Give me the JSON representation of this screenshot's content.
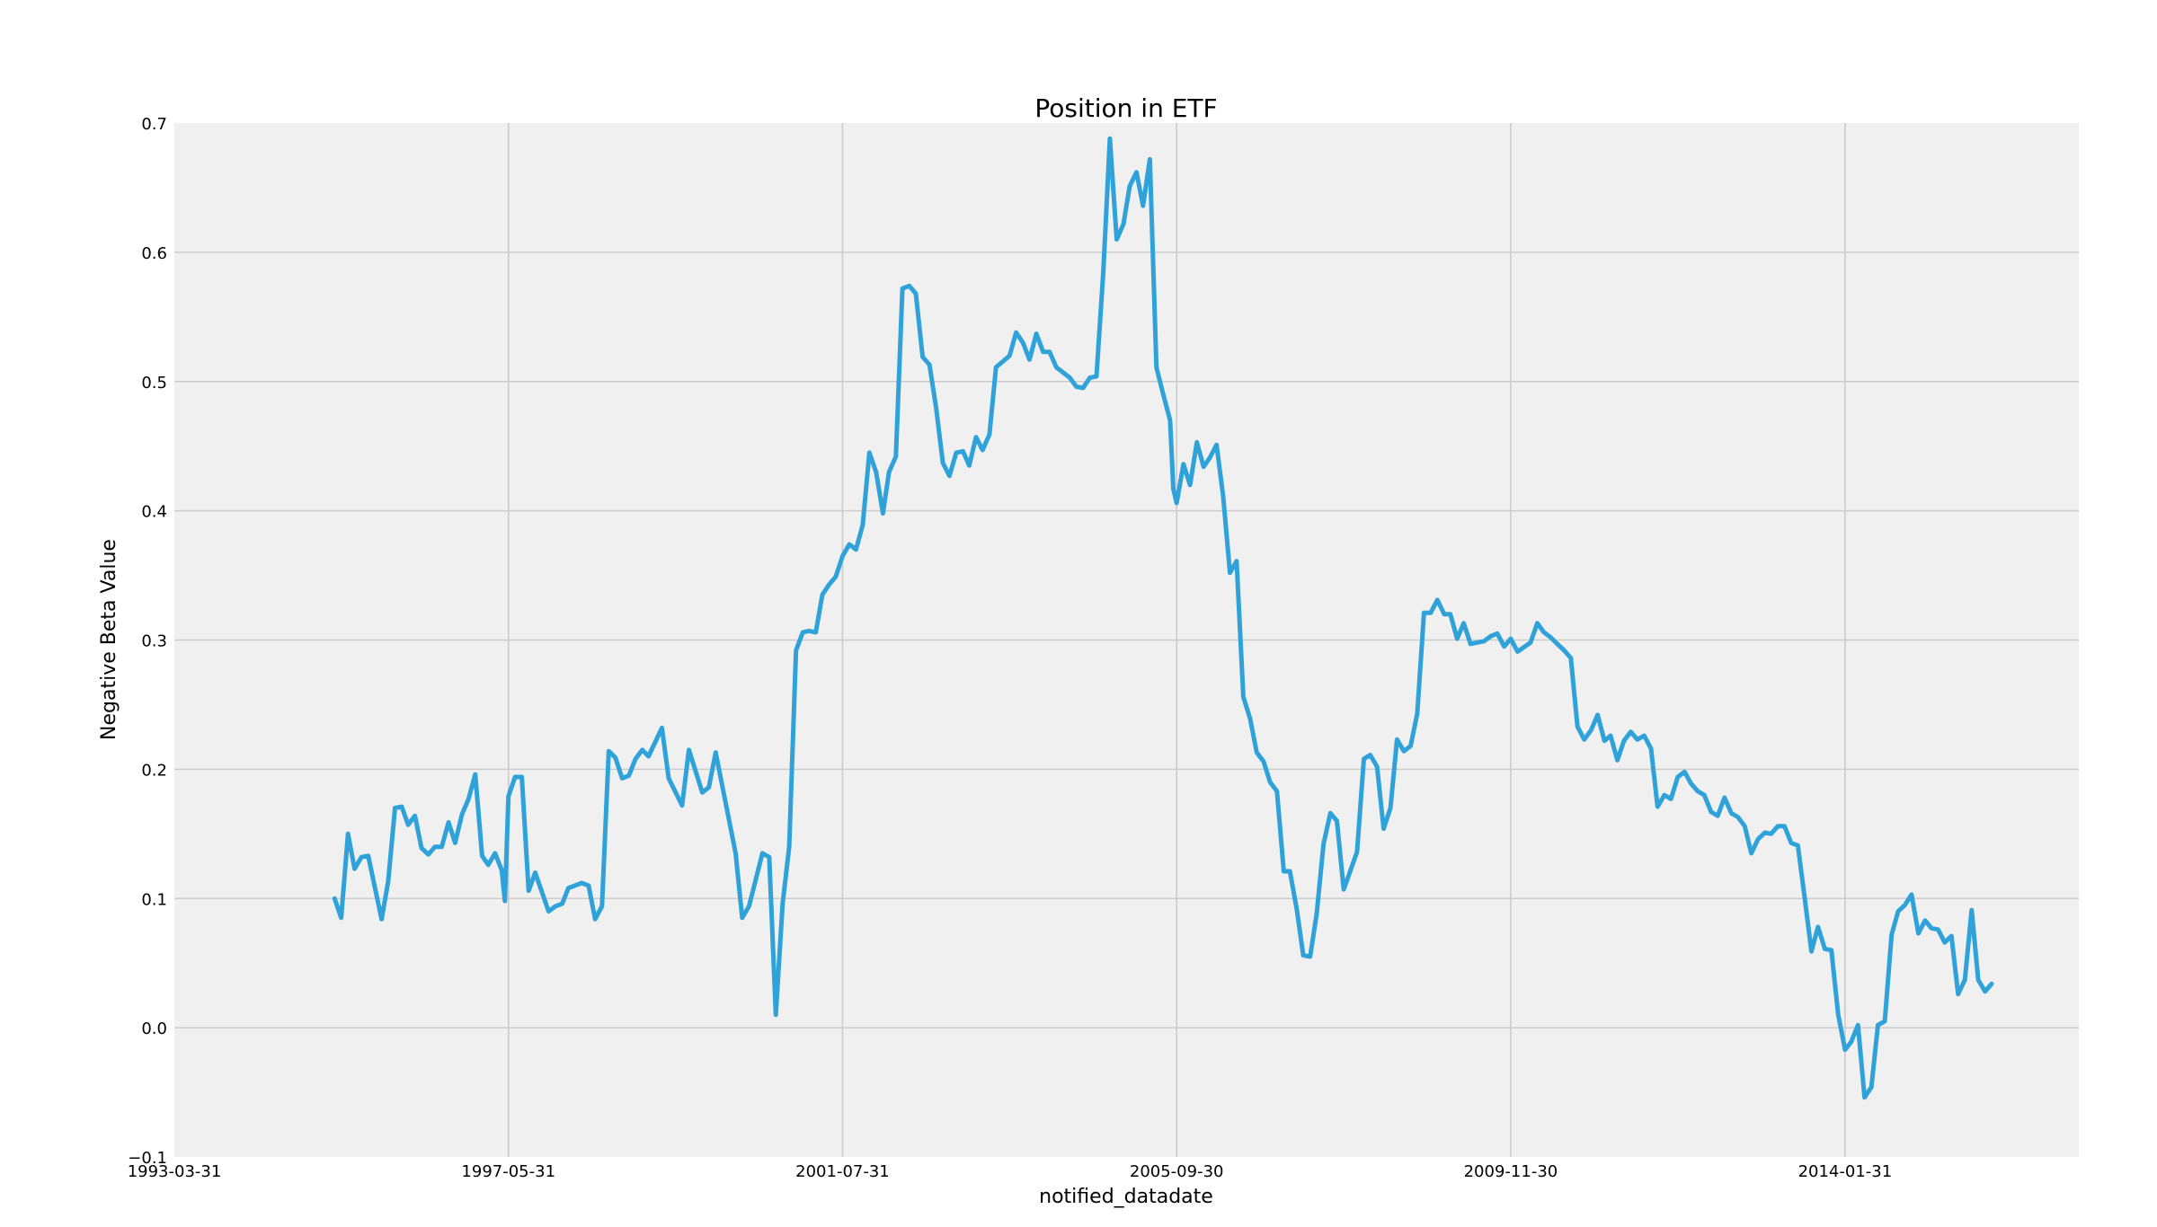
{
  "chart_data": {
    "type": "line",
    "title": "Position in ETF",
    "xlabel": "notified_datadate",
    "ylabel": "Negative Beta Value",
    "xlim": [
      "1993-03-31",
      "2016-12-31"
    ],
    "ylim": [
      -0.1,
      0.7
    ],
    "xticks": [
      "1993-03-31",
      "1997-05-31",
      "2001-07-31",
      "2005-09-30",
      "2009-11-30",
      "2014-01-31"
    ],
    "yticks": [
      -0.1,
      0.0,
      0.1,
      0.2,
      0.3,
      0.4,
      0.5,
      0.6,
      0.7
    ],
    "ytick_labels": [
      "−0.1",
      "0.0",
      "0.1",
      "0.2",
      "0.3",
      "0.4",
      "0.5",
      "0.6",
      "0.7"
    ],
    "grid": true,
    "colors": {
      "line": "#30a2da",
      "plot_bg": "#f0f0f0",
      "grid": "#cbcbcb"
    },
    "series": [
      {
        "values": [
          [
            "1995-03-31",
            0.1
          ],
          [
            "1995-04-30",
            0.085
          ],
          [
            "1995-05-31",
            0.15
          ],
          [
            "1995-06-30",
            0.123
          ],
          [
            "1995-07-31",
            0.132
          ],
          [
            "1995-08-31",
            0.133
          ],
          [
            "1995-10-31",
            0.084
          ],
          [
            "1995-11-30",
            0.113
          ],
          [
            "1995-12-31",
            0.17
          ],
          [
            "1996-01-31",
            0.171
          ],
          [
            "1996-02-29",
            0.157
          ],
          [
            "1996-03-31",
            0.164
          ],
          [
            "1996-04-30",
            0.139
          ],
          [
            "1996-05-31",
            0.134
          ],
          [
            "1996-06-30",
            0.14
          ],
          [
            "1996-07-31",
            0.14
          ],
          [
            "1996-08-31",
            0.159
          ],
          [
            "1996-09-30",
            0.143
          ],
          [
            "1996-10-31",
            0.165
          ],
          [
            "1996-11-30",
            0.177
          ],
          [
            "1996-12-31",
            0.196
          ],
          [
            "1997-01-31",
            0.133
          ],
          [
            "1997-02-28",
            0.126
          ],
          [
            "1997-03-31",
            0.135
          ],
          [
            "1997-04-30",
            0.122
          ],
          [
            "1997-05-15",
            0.098
          ],
          [
            "1997-05-31",
            0.179
          ],
          [
            "1997-06-30",
            0.194
          ],
          [
            "1997-07-31",
            0.194
          ],
          [
            "1997-08-31",
            0.106
          ],
          [
            "1997-09-30",
            0.12
          ],
          [
            "1997-11-30",
            0.09
          ],
          [
            "1997-12-31",
            0.094
          ],
          [
            "1998-01-31",
            0.096
          ],
          [
            "1998-02-28",
            0.108
          ],
          [
            "1998-04-30",
            0.112
          ],
          [
            "1998-05-31",
            0.11
          ],
          [
            "1998-06-30",
            0.084
          ],
          [
            "1998-07-31",
            0.094
          ],
          [
            "1998-08-31",
            0.214
          ],
          [
            "1998-09-30",
            0.209
          ],
          [
            "1998-10-31",
            0.193
          ],
          [
            "1998-11-30",
            0.195
          ],
          [
            "1998-12-31",
            0.208
          ],
          [
            "1999-01-31",
            0.215
          ],
          [
            "1999-02-28",
            0.21
          ],
          [
            "1999-04-30",
            0.232
          ],
          [
            "1999-05-31",
            0.193
          ],
          [
            "1999-07-31",
            0.172
          ],
          [
            "1999-08-31",
            0.215
          ],
          [
            "1999-10-31",
            0.182
          ],
          [
            "1999-11-30",
            0.186
          ],
          [
            "1999-12-31",
            0.213
          ],
          [
            "2000-03-31",
            0.135
          ],
          [
            "2000-04-30",
            0.085
          ],
          [
            "2000-05-31",
            0.094
          ],
          [
            "2000-06-30",
            0.114
          ],
          [
            "2000-07-31",
            0.135
          ],
          [
            "2000-08-31",
            0.132
          ],
          [
            "2000-09-30",
            0.01
          ],
          [
            "2000-10-31",
            0.096
          ],
          [
            "2000-11-30",
            0.14
          ],
          [
            "2000-12-31",
            0.292
          ],
          [
            "2001-01-31",
            0.306
          ],
          [
            "2001-02-28",
            0.307
          ],
          [
            "2001-03-31",
            0.306
          ],
          [
            "2001-04-30",
            0.335
          ],
          [
            "2001-05-31",
            0.343
          ],
          [
            "2001-06-30",
            0.349
          ],
          [
            "2001-07-31",
            0.365
          ],
          [
            "2001-08-31",
            0.374
          ],
          [
            "2001-09-30",
            0.37
          ],
          [
            "2001-10-31",
            0.389
          ],
          [
            "2001-11-30",
            0.445
          ],
          [
            "2001-12-31",
            0.43
          ],
          [
            "2002-01-31",
            0.398
          ],
          [
            "2002-02-28",
            0.43
          ],
          [
            "2002-03-31",
            0.442
          ],
          [
            "2002-04-30",
            0.572
          ],
          [
            "2002-05-31",
            0.574
          ],
          [
            "2002-06-30",
            0.568
          ],
          [
            "2002-07-31",
            0.519
          ],
          [
            "2002-08-31",
            0.513
          ],
          [
            "2002-09-30",
            0.48
          ],
          [
            "2002-10-31",
            0.437
          ],
          [
            "2002-11-30",
            0.427
          ],
          [
            "2002-12-31",
            0.445
          ],
          [
            "2003-01-31",
            0.446
          ],
          [
            "2003-02-28",
            0.435
          ],
          [
            "2003-03-31",
            0.457
          ],
          [
            "2003-04-30",
            0.447
          ],
          [
            "2003-05-31",
            0.459
          ],
          [
            "2003-06-30",
            0.511
          ],
          [
            "2003-08-31",
            0.52
          ],
          [
            "2003-09-30",
            0.538
          ],
          [
            "2003-10-31",
            0.53
          ],
          [
            "2003-11-30",
            0.517
          ],
          [
            "2003-12-31",
            0.537
          ],
          [
            "2004-01-31",
            0.523
          ],
          [
            "2004-02-29",
            0.523
          ],
          [
            "2004-03-31",
            0.511
          ],
          [
            "2004-05-31",
            0.503
          ],
          [
            "2004-06-30",
            0.496
          ],
          [
            "2004-07-31",
            0.495
          ],
          [
            "2004-08-31",
            0.503
          ],
          [
            "2004-09-30",
            0.504
          ],
          [
            "2004-10-31",
            0.585
          ],
          [
            "2004-11-30",
            0.688
          ],
          [
            "2004-12-31",
            0.61
          ],
          [
            "2005-01-31",
            0.622
          ],
          [
            "2005-02-28",
            0.651
          ],
          [
            "2005-03-31",
            0.662
          ],
          [
            "2005-04-30",
            0.636
          ],
          [
            "2005-05-31",
            0.672
          ],
          [
            "2005-06-30",
            0.511
          ],
          [
            "2005-07-31",
            0.49
          ],
          [
            "2005-08-31",
            0.47
          ],
          [
            "2005-09-15",
            0.417
          ],
          [
            "2005-09-30",
            0.406
          ],
          [
            "2005-10-31",
            0.436
          ],
          [
            "2005-11-30",
            0.42
          ],
          [
            "2005-12-31",
            0.453
          ],
          [
            "2006-01-31",
            0.434
          ],
          [
            "2006-02-28",
            0.441
          ],
          [
            "2006-03-31",
            0.451
          ],
          [
            "2006-04-30",
            0.411
          ],
          [
            "2006-05-31",
            0.352
          ],
          [
            "2006-06-30",
            0.361
          ],
          [
            "2006-07-31",
            0.256
          ],
          [
            "2006-08-31",
            0.239
          ],
          [
            "2006-09-30",
            0.213
          ],
          [
            "2006-10-31",
            0.206
          ],
          [
            "2006-11-30",
            0.19
          ],
          [
            "2006-12-31",
            0.183
          ],
          [
            "2007-01-31",
            0.121
          ],
          [
            "2007-02-28",
            0.121
          ],
          [
            "2007-03-31",
            0.092
          ],
          [
            "2007-04-30",
            0.056
          ],
          [
            "2007-05-31",
            0.055
          ],
          [
            "2007-06-30",
            0.088
          ],
          [
            "2007-07-31",
            0.142
          ],
          [
            "2007-08-31",
            0.166
          ],
          [
            "2007-09-30",
            0.16
          ],
          [
            "2007-10-31",
            0.107
          ],
          [
            "2007-12-31",
            0.136
          ],
          [
            "2008-01-31",
            0.208
          ],
          [
            "2008-02-29",
            0.211
          ],
          [
            "2008-03-31",
            0.202
          ],
          [
            "2008-04-30",
            0.154
          ],
          [
            "2008-05-31",
            0.17
          ],
          [
            "2008-06-30",
            0.223
          ],
          [
            "2008-07-31",
            0.214
          ],
          [
            "2008-08-31",
            0.218
          ],
          [
            "2008-09-30",
            0.243
          ],
          [
            "2008-10-31",
            0.321
          ],
          [
            "2008-11-30",
            0.321
          ],
          [
            "2008-12-31",
            0.331
          ],
          [
            "2009-01-31",
            0.32
          ],
          [
            "2009-02-28",
            0.32
          ],
          [
            "2009-03-31",
            0.301
          ],
          [
            "2009-04-30",
            0.313
          ],
          [
            "2009-05-31",
            0.297
          ],
          [
            "2009-07-31",
            0.299
          ],
          [
            "2009-08-31",
            0.303
          ],
          [
            "2009-09-30",
            0.305
          ],
          [
            "2009-10-31",
            0.295
          ],
          [
            "2009-11-30",
            0.301
          ],
          [
            "2009-12-31",
            0.291
          ],
          [
            "2010-02-28",
            0.298
          ],
          [
            "2010-03-31",
            0.313
          ],
          [
            "2010-04-30",
            0.306
          ],
          [
            "2010-05-31",
            0.302
          ],
          [
            "2010-06-30",
            0.297
          ],
          [
            "2010-07-31",
            0.292
          ],
          [
            "2010-08-31",
            0.286
          ],
          [
            "2010-09-30",
            0.233
          ],
          [
            "2010-10-31",
            0.223
          ],
          [
            "2010-11-30",
            0.23
          ],
          [
            "2010-12-31",
            0.242
          ],
          [
            "2011-01-31",
            0.222
          ],
          [
            "2011-02-28",
            0.226
          ],
          [
            "2011-03-31",
            0.207
          ],
          [
            "2011-04-30",
            0.222
          ],
          [
            "2011-05-31",
            0.229
          ],
          [
            "2011-06-30",
            0.223
          ],
          [
            "2011-07-31",
            0.226
          ],
          [
            "2011-08-31",
            0.216
          ],
          [
            "2011-09-30",
            0.171
          ],
          [
            "2011-10-31",
            0.18
          ],
          [
            "2011-11-30",
            0.177
          ],
          [
            "2011-12-31",
            0.194
          ],
          [
            "2012-01-31",
            0.198
          ],
          [
            "2012-02-29",
            0.189
          ],
          [
            "2012-03-31",
            0.183
          ],
          [
            "2012-04-30",
            0.18
          ],
          [
            "2012-05-31",
            0.167
          ],
          [
            "2012-06-30",
            0.164
          ],
          [
            "2012-07-31",
            0.178
          ],
          [
            "2012-08-31",
            0.166
          ],
          [
            "2012-09-30",
            0.163
          ],
          [
            "2012-10-31",
            0.156
          ],
          [
            "2012-11-30",
            0.135
          ],
          [
            "2012-12-31",
            0.146
          ],
          [
            "2013-01-31",
            0.151
          ],
          [
            "2013-02-28",
            0.15
          ],
          [
            "2013-03-31",
            0.156
          ],
          [
            "2013-04-30",
            0.156
          ],
          [
            "2013-05-31",
            0.143
          ],
          [
            "2013-06-30",
            0.141
          ],
          [
            "2013-07-31",
            0.101
          ],
          [
            "2013-08-31",
            0.059
          ],
          [
            "2013-09-30",
            0.078
          ],
          [
            "2013-10-31",
            0.061
          ],
          [
            "2013-11-30",
            0.06
          ],
          [
            "2013-12-31",
            0.01
          ],
          [
            "2014-01-31",
            -0.017
          ],
          [
            "2014-02-28",
            -0.011
          ],
          [
            "2014-03-31",
            0.002
          ],
          [
            "2014-04-30",
            -0.054
          ],
          [
            "2014-05-31",
            -0.046
          ],
          [
            "2014-06-30",
            0.002
          ],
          [
            "2014-07-31",
            0.005
          ],
          [
            "2014-08-31",
            0.072
          ],
          [
            "2014-09-30",
            0.09
          ],
          [
            "2014-10-31",
            0.095
          ],
          [
            "2014-11-30",
            0.103
          ],
          [
            "2014-12-31",
            0.073
          ],
          [
            "2015-01-31",
            0.083
          ],
          [
            "2015-02-28",
            0.077
          ],
          [
            "2015-03-31",
            0.076
          ],
          [
            "2015-04-30",
            0.066
          ],
          [
            "2015-05-31",
            0.071
          ],
          [
            "2015-06-30",
            0.026
          ],
          [
            "2015-07-31",
            0.037
          ],
          [
            "2015-08-31",
            0.091
          ],
          [
            "2015-09-30",
            0.037
          ],
          [
            "2015-10-31",
            0.028
          ],
          [
            "2015-11-30",
            0.034
          ]
        ]
      }
    ]
  }
}
